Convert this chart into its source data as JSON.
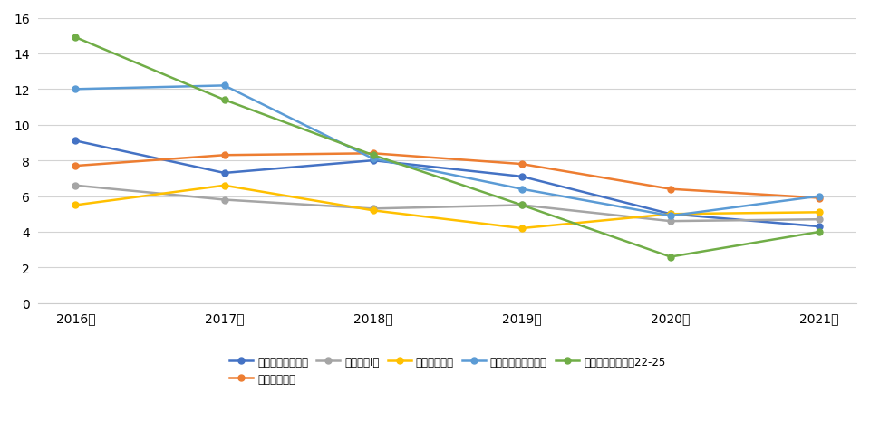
{
  "years": [
    "2016年",
    "2017年",
    "2018年",
    "2019年",
    "2020年",
    "2021年"
  ],
  "series": [
    {
      "label": "札幌市　一般事務",
      "color": "#4472C4",
      "marker": "o",
      "values": [
        9.1,
        7.3,
        8.0,
        7.1,
        5.0,
        4.3
      ]
    },
    {
      "label": "仙台市　事務",
      "color": "#ED7D31",
      "marker": "o",
      "values": [
        7.7,
        8.3,
        8.4,
        7.8,
        6.4,
        5.9
      ]
    },
    {
      "label": "特別区　Ⅰ類",
      "color": "#A5A5A5",
      "marker": "o",
      "values": [
        6.6,
        5.8,
        5.3,
        5.5,
        4.6,
        4.7
      ]
    },
    {
      "label": "横浜市　事務",
      "color": "#FFC000",
      "marker": "o",
      "values": [
        5.5,
        6.6,
        5.2,
        4.2,
        5.0,
        5.1
      ]
    },
    {
      "label": "名古屋市　行政一般",
      "color": "#5B9BD5",
      "marker": "o",
      "values": [
        12.0,
        12.2,
        8.1,
        6.4,
        4.9,
        6.0
      ]
    },
    {
      "label": "大阪市　事務行政22-25",
      "color": "#70AD47",
      "marker": "o",
      "values": [
        14.9,
        11.4,
        8.3,
        5.5,
        2.6,
        4.0
      ]
    }
  ],
  "ylim": [
    0,
    16
  ],
  "yticks": [
    0,
    2,
    4,
    6,
    8,
    10,
    12,
    14,
    16
  ],
  "background_color": "#FFFFFF",
  "grid_color": "#D3D3D3"
}
